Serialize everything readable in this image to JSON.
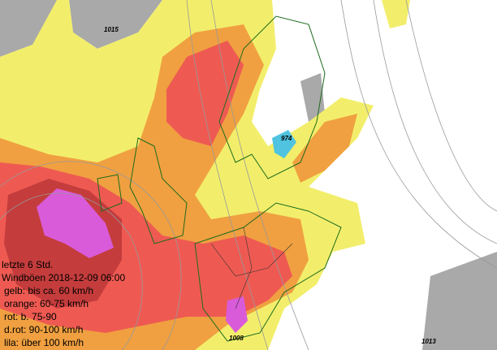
{
  "legend": {
    "period": "letzte 6 Std.",
    "title": "Windböen 2018-12-09 06:00",
    "entries": [
      "gelb: bis ca. 60 km/h",
      "orange: 60-75 km/h",
      "rot: b. 75-90",
      "d.rot: 90-100 km/h",
      "lila: über 100 km/h"
    ]
  },
  "isobar_labels": [
    "1015",
    "974",
    "1008",
    "1013"
  ]
}
